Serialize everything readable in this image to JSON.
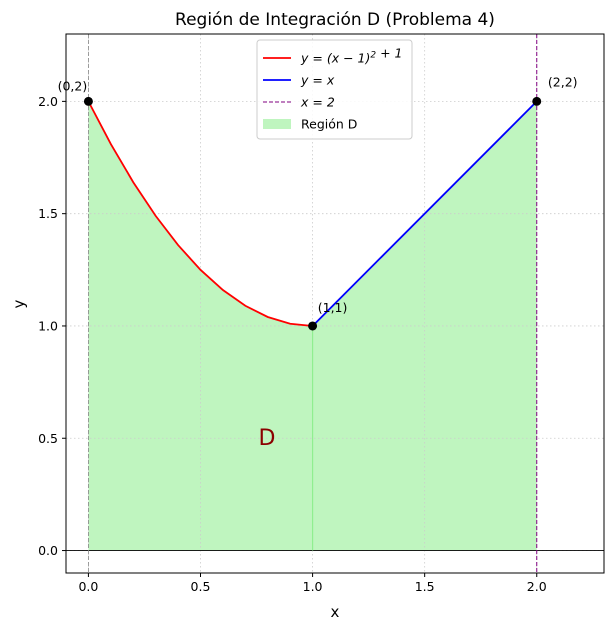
{
  "chart_data": {
    "type": "area",
    "title": "Región de Integración D (Problema 4)",
    "xlabel": "x",
    "ylabel": "y",
    "xlim": [
      -0.1,
      2.3
    ],
    "ylim": [
      -0.1,
      2.3
    ],
    "xticks": [
      0.0,
      0.5,
      1.0,
      1.5,
      2.0
    ],
    "xtick_labels": [
      "0.0",
      "0.5",
      "1.0",
      "1.5",
      "2.0"
    ],
    "yticks": [
      0.0,
      0.5,
      1.0,
      1.5,
      2.0
    ],
    "ytick_labels": [
      "0.0",
      "0.5",
      "1.0",
      "1.5",
      "2.0"
    ],
    "grid": true,
    "legend_position": "top-center",
    "series": [
      {
        "name": "$y = (x-1)^2 + 1$",
        "legend_parts": [
          [
            "y = (x ",
            "normal"
          ],
          [
            "−",
            "normal"
          ],
          [
            " 1)",
            "normal"
          ],
          [
            "2",
            "sup"
          ],
          [
            " + 1",
            "normal"
          ]
        ],
        "color": "#ff0000",
        "style": "solid",
        "x": [
          0.0,
          0.1,
          0.2,
          0.3,
          0.4,
          0.5,
          0.6,
          0.7,
          0.8,
          0.9,
          1.0
        ],
        "y": [
          2.0,
          1.81,
          1.64,
          1.49,
          1.36,
          1.25,
          1.16,
          1.09,
          1.04,
          1.01,
          1.0
        ]
      },
      {
        "name": "$y = x$",
        "legend_parts": [
          [
            "y = x",
            "normal"
          ]
        ],
        "color": "#0000ff",
        "style": "solid",
        "x": [
          1.0,
          2.0
        ],
        "y": [
          1.0,
          2.0
        ]
      },
      {
        "name": "$x = 2$",
        "legend_parts": [
          [
            "x = 2",
            "normal"
          ]
        ],
        "color": "#800080",
        "style": "dashed",
        "x": [
          2.0,
          2.0
        ],
        "y": [
          -0.1,
          2.3
        ]
      },
      {
        "name": "Región D",
        "legend_parts": [
          [
            "Región D",
            "normal"
          ]
        ],
        "color": "#90ee90",
        "style": "fill"
      }
    ],
    "points": [
      {
        "x": 0,
        "y": 2,
        "label": "(0,2)"
      },
      {
        "x": 1,
        "y": 1,
        "label": "(1,1)"
      },
      {
        "x": 2,
        "y": 2,
        "label": "(2,2)"
      }
    ],
    "annotations": [
      {
        "text": "D",
        "x": 0.8,
        "y": 0.5,
        "color": "#8b0000"
      }
    ]
  }
}
